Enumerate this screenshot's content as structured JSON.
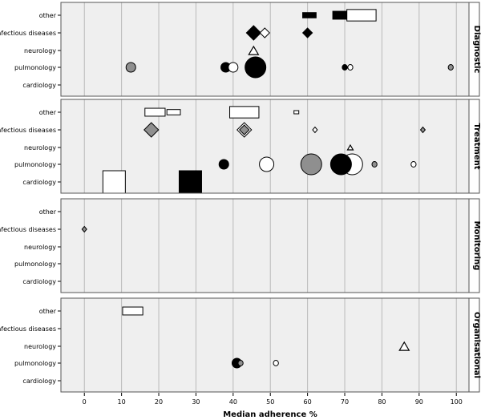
{
  "chart_data": {
    "type": "scatter",
    "title": "",
    "xlabel": "Median adherence %",
    "xlim": [
      -6.3,
      103.4
    ],
    "x_ticks": [
      "0",
      "10",
      "20",
      "30",
      "40",
      "50",
      "60",
      "70",
      "80",
      "90",
      "100"
    ],
    "x_tick_values": [
      0,
      10,
      20,
      30,
      40,
      50,
      60,
      70,
      80,
      90,
      100
    ],
    "categories": [
      "other",
      "infectious diseases",
      "neurology",
      "pulmonology",
      "cardiology"
    ],
    "panels": [
      {
        "name": "Diagnostic",
        "points": [
          {
            "category": "other",
            "x": 60.5,
            "shape": "rect",
            "fill": "black",
            "size": "small"
          },
          {
            "category": "other",
            "x": 69.5,
            "shape": "rect",
            "fill": "black",
            "size": "medium"
          },
          {
            "category": "other",
            "x": 74.5,
            "shape": "rect",
            "fill": "white",
            "size": "large"
          },
          {
            "category": "infectious diseases",
            "x": 45.5,
            "shape": "diamond",
            "fill": "black",
            "size": "medium"
          },
          {
            "category": "infectious diseases",
            "x": 48.5,
            "shape": "diamond",
            "fill": "white",
            "size": "small"
          },
          {
            "category": "infectious diseases",
            "x": 60,
            "shape": "diamond",
            "fill": "black",
            "size": "small"
          },
          {
            "category": "neurology",
            "x": 45.5,
            "shape": "triangle",
            "fill": "white",
            "size": "small"
          },
          {
            "category": "pulmonology",
            "x": 12.5,
            "shape": "circle",
            "fill": "gray",
            "size": "small"
          },
          {
            "category": "pulmonology",
            "x": 38,
            "shape": "circle",
            "fill": "black",
            "size": "small"
          },
          {
            "category": "pulmonology",
            "x": 40,
            "shape": "circle",
            "fill": "white",
            "size": "small"
          },
          {
            "category": "pulmonology",
            "x": 46,
            "shape": "circle",
            "fill": "black",
            "size": "large"
          },
          {
            "category": "pulmonology",
            "x": 70,
            "shape": "circle",
            "fill": "black",
            "size": "tiny"
          },
          {
            "category": "pulmonology",
            "x": 71.5,
            "shape": "circle",
            "fill": "white",
            "size": "tiny"
          },
          {
            "category": "pulmonology",
            "x": 98.5,
            "shape": "circle",
            "fill": "gray",
            "size": "tiny"
          }
        ]
      },
      {
        "name": "Treatment",
        "points": [
          {
            "category": "other",
            "x": 19,
            "shape": "rect",
            "fill": "white",
            "size": "medium"
          },
          {
            "category": "other",
            "x": 24,
            "shape": "rect",
            "fill": "white",
            "size": "small"
          },
          {
            "category": "other",
            "x": 43,
            "shape": "rect",
            "fill": "white",
            "size": "large"
          },
          {
            "category": "other",
            "x": 57,
            "shape": "rect",
            "fill": "white",
            "size": "tiny"
          },
          {
            "category": "infectious diseases",
            "x": 18,
            "shape": "diamond",
            "fill": "gray",
            "size": "medium"
          },
          {
            "category": "infectious diseases",
            "x": 43,
            "shape": "diamond",
            "fill": "white",
            "size": "medium"
          },
          {
            "category": "infectious diseases",
            "x": 43,
            "shape": "diamond",
            "fill": "gray",
            "size": "small"
          },
          {
            "category": "infectious diseases",
            "x": 62,
            "shape": "diamond",
            "fill": "white",
            "size": "tiny"
          },
          {
            "category": "infectious diseases",
            "x": 91,
            "shape": "diamond",
            "fill": "gray",
            "size": "tiny"
          },
          {
            "category": "neurology",
            "x": 71.5,
            "shape": "triangle",
            "fill": "white",
            "size": "tiny"
          },
          {
            "category": "pulmonology",
            "x": 37.5,
            "shape": "circle",
            "fill": "black",
            "size": "small"
          },
          {
            "category": "pulmonology",
            "x": 49,
            "shape": "circle",
            "fill": "white",
            "size": "medium"
          },
          {
            "category": "pulmonology",
            "x": 61,
            "shape": "circle",
            "fill": "gray",
            "size": "large"
          },
          {
            "category": "pulmonology",
            "x": 72,
            "shape": "circle",
            "fill": "white",
            "size": "large"
          },
          {
            "category": "pulmonology",
            "x": 69,
            "shape": "circle",
            "fill": "black",
            "size": "large"
          },
          {
            "category": "pulmonology",
            "x": 78,
            "shape": "circle",
            "fill": "gray",
            "size": "tiny"
          },
          {
            "category": "pulmonology",
            "x": 88.5,
            "shape": "circle",
            "fill": "white",
            "size": "tiny"
          },
          {
            "category": "cardiology",
            "x": 8,
            "shape": "rect",
            "fill": "white",
            "size": "huge"
          },
          {
            "category": "cardiology",
            "x": 28.5,
            "shape": "rect",
            "fill": "black",
            "size": "huge"
          }
        ]
      },
      {
        "name": "Monitoring",
        "points": [
          {
            "category": "infectious diseases",
            "x": 0,
            "shape": "diamond",
            "fill": "gray",
            "size": "tiny"
          }
        ]
      },
      {
        "name": "Organisational",
        "points": [
          {
            "category": "other",
            "x": 13,
            "shape": "rect",
            "fill": "white",
            "size": "medium"
          },
          {
            "category": "neurology",
            "x": 86,
            "shape": "triangle",
            "fill": "white",
            "size": "small"
          },
          {
            "category": "pulmonology",
            "x": 41,
            "shape": "circle",
            "fill": "black",
            "size": "small"
          },
          {
            "category": "pulmonology",
            "x": 42,
            "shape": "circle",
            "fill": "gray",
            "size": "tinyhalf"
          },
          {
            "category": "pulmonology",
            "x": 51.5,
            "shape": "circle",
            "fill": "white",
            "size": "tiny"
          }
        ]
      }
    ]
  },
  "colors": {
    "panel_bg": "#efefef",
    "grid": "#b9b9b9",
    "frame": "#555555",
    "gray_fill": "#8f8f8f",
    "black_fill": "#000000",
    "white_fill": "#ffffff"
  }
}
